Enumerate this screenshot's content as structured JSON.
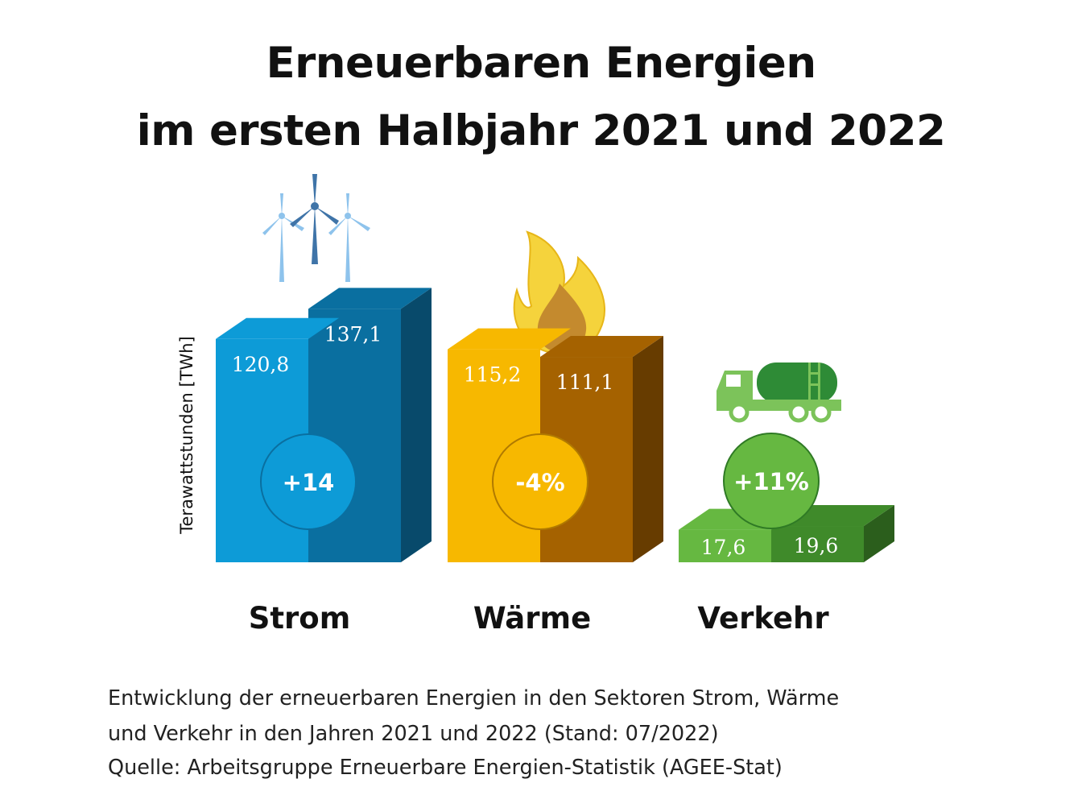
{
  "title_line1": "Erneuerbaren Energien",
  "title_line2": "im ersten Halbjahr 2021 und 2022",
  "chart_data": {
    "type": "bar",
    "title": "Erneuerbaren Energien im ersten Halbjahr 2021 und 2022",
    "ylabel": "Terawattstunden [TWh]",
    "xlabel": "",
    "categories": [
      "Strom",
      "Wärme",
      "Verkehr"
    ],
    "series": [
      {
        "name": "2021",
        "values": [
          120.8,
          115.2,
          17.6
        ]
      },
      {
        "name": "2022",
        "values": [
          137.1,
          111.1,
          19.6
        ]
      }
    ],
    "value_labels_2021": [
      "120,8",
      "115,2",
      "17,6"
    ],
    "value_labels_2022": [
      "137,1",
      "111,1",
      "19,6"
    ],
    "change_labels": [
      "+14",
      "-4%",
      "+11%"
    ],
    "icons": [
      "wind-turbines-icon",
      "flame-icon",
      "tanker-truck-icon"
    ],
    "colors": {
      "strom": [
        "#0d9bd7",
        "#0a6fa0",
        "#084a6b"
      ],
      "waerme": [
        "#f7b800",
        "#a56200",
        "#673c00"
      ],
      "verkehr": [
        "#66b841",
        "#3f8a2a",
        "#2b5e1c"
      ]
    }
  },
  "footer": {
    "line1": "Entwicklung der erneuerbaren Energien in den Sektoren Strom, Wärme",
    "line2": "und Verkehr in den Jahren 2021 und 2022 (Stand: 07/2022)",
    "line3": "Quelle: Arbeitsgruppe Erneuerbare Energien-Statistik (AGEE-Stat)"
  }
}
